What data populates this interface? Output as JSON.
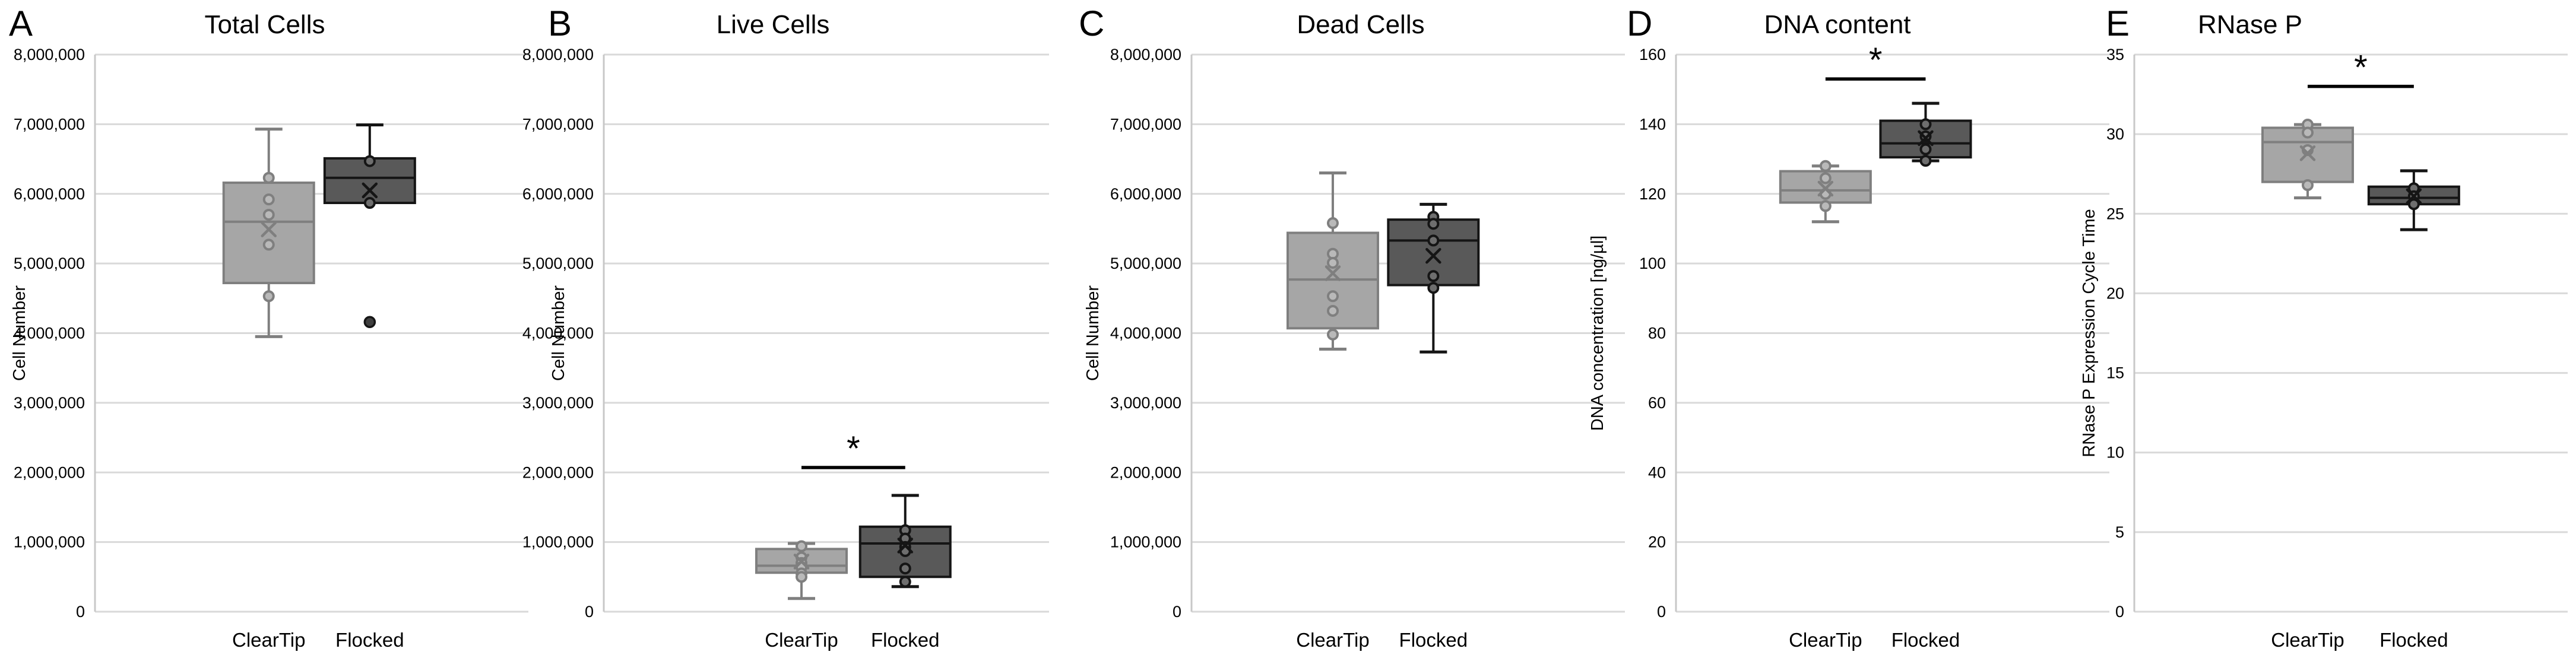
{
  "colors": {
    "cleartip_fill": "#a6a6a6",
    "cleartip_stroke": "#7f7f7f",
    "cleartip_point_fill": "#b9b9b9",
    "flocked_fill": "#595959",
    "flocked_stroke": "#151515",
    "flocked_point_fill": "#6e6e6e",
    "outlier_fill": "#3f3f3f",
    "gridline": "#d9d9d9",
    "axis": "#c8c8c8",
    "significance": "#000000",
    "text": "#000000"
  },
  "chart_data": [
    {
      "type": "box",
      "panel_label": "A",
      "title": "Total Cells",
      "ylabel": "Cell Number",
      "ylim": [
        0,
        8000000
      ],
      "ytick_step": 1000000,
      "ytick_format": "comma",
      "grid": true,
      "categories": [
        "ClearTip",
        "Flocked"
      ],
      "significance": null,
      "series": [
        {
          "name": "ClearTip",
          "style": "cleartip",
          "whisker_low": 3950000,
          "q1": 4720000,
          "median": 5600000,
          "q3": 6160000,
          "whisker_high": 6930000,
          "mean": 5490000,
          "points": [
            6230000,
            5920000,
            5700000,
            5270000,
            4530000
          ],
          "outliers": []
        },
        {
          "name": "Flocked",
          "style": "flocked",
          "whisker_low": 5870000,
          "q1": 5870000,
          "median": 6230000,
          "q3": 6510000,
          "whisker_high": 6990000,
          "mean": 6050000,
          "points": [
            6470000,
            5870000
          ],
          "outliers": [
            4160000
          ]
        }
      ]
    },
    {
      "type": "box",
      "panel_label": "B",
      "title": "Live Cells",
      "ylabel": "Cell Number",
      "ylim": [
        0,
        8000000
      ],
      "ytick_step": 1000000,
      "ytick_format": "comma",
      "grid": true,
      "categories": [
        "ClearTip",
        "Flocked"
      ],
      "significance": {
        "label": "*",
        "y": 2070000
      },
      "series": [
        {
          "name": "ClearTip",
          "style": "cleartip",
          "whisker_low": 190000,
          "q1": 560000,
          "median": 660000,
          "q3": 900000,
          "whisker_high": 980000,
          "mean": 720000,
          "points": [
            940000,
            780000,
            700000,
            640000,
            550000,
            500000
          ],
          "outliers": []
        },
        {
          "name": "Flocked",
          "style": "flocked",
          "whisker_low": 360000,
          "q1": 500000,
          "median": 980000,
          "q3": 1220000,
          "whisker_high": 1670000,
          "mean": 950000,
          "points": [
            1170000,
            1050000,
            930000,
            870000,
            620000,
            430000
          ],
          "outliers": []
        }
      ]
    },
    {
      "type": "box",
      "panel_label": "C",
      "title": "Dead Cells",
      "ylabel": "Cell Number",
      "ylim": [
        0,
        8000000
      ],
      "ytick_step": 1000000,
      "ytick_format": "comma",
      "grid": true,
      "categories": [
        "ClearTip",
        "Flocked"
      ],
      "significance": null,
      "series": [
        {
          "name": "ClearTip",
          "style": "cleartip",
          "whisker_low": 3770000,
          "q1": 4070000,
          "median": 4770000,
          "q3": 5440000,
          "whisker_high": 6300000,
          "mean": 4860000,
          "points": [
            5580000,
            5140000,
            5010000,
            4530000,
            4320000,
            3980000
          ],
          "outliers": []
        },
        {
          "name": "Flocked",
          "style": "flocked",
          "whisker_low": 3730000,
          "q1": 4690000,
          "median": 5330000,
          "q3": 5630000,
          "whisker_high": 5850000,
          "mean": 5110000,
          "points": [
            5670000,
            5570000,
            5330000,
            4820000,
            4650000
          ],
          "outliers": []
        }
      ]
    },
    {
      "type": "box",
      "panel_label": "D",
      "title": "DNA content",
      "ylabel": "DNA concentration [ng/µl]",
      "ylim": [
        0,
        160
      ],
      "ytick_step": 20,
      "ytick_format": "plain",
      "grid": true,
      "categories": [
        "ClearTip",
        "Flocked"
      ],
      "significance": {
        "label": "*",
        "y": 153
      },
      "series": [
        {
          "name": "ClearTip",
          "style": "cleartip",
          "whisker_low": 112,
          "q1": 117.5,
          "median": 121,
          "q3": 126.5,
          "whisker_high": 128,
          "mean": 121.5,
          "points": [
            128,
            124.5,
            120,
            116.5
          ],
          "outliers": []
        },
        {
          "name": "Flocked",
          "style": "flocked",
          "whisker_low": 129.5,
          "q1": 130.5,
          "median": 134.5,
          "q3": 141,
          "whisker_high": 146,
          "mean": 136,
          "points": [
            140,
            136.5,
            132.8,
            129.5
          ],
          "outliers": []
        }
      ]
    },
    {
      "type": "box",
      "panel_label": "E",
      "title": "RNase P",
      "ylabel": "RNase P Expression Cycle Time",
      "ylim": [
        0,
        35
      ],
      "ytick_step": 5,
      "ytick_format": "plain",
      "grid": true,
      "categories": [
        "ClearTip",
        "Flocked"
      ],
      "significance": {
        "label": "*",
        "y": 33
      },
      "series": [
        {
          "name": "ClearTip",
          "style": "cleartip",
          "whisker_low": 26,
          "q1": 27,
          "median": 29.5,
          "q3": 30.4,
          "whisker_high": 30.6,
          "mean": 28.8,
          "points": [
            30.6,
            30.1,
            29.0,
            26.8
          ],
          "outliers": []
        },
        {
          "name": "Flocked",
          "style": "flocked",
          "whisker_low": 24,
          "q1": 25.6,
          "median": 26.0,
          "q3": 26.7,
          "whisker_high": 27.7,
          "mean": 26.1,
          "points": [
            26.6,
            26.1,
            25.6
          ],
          "outliers": []
        }
      ]
    }
  ]
}
